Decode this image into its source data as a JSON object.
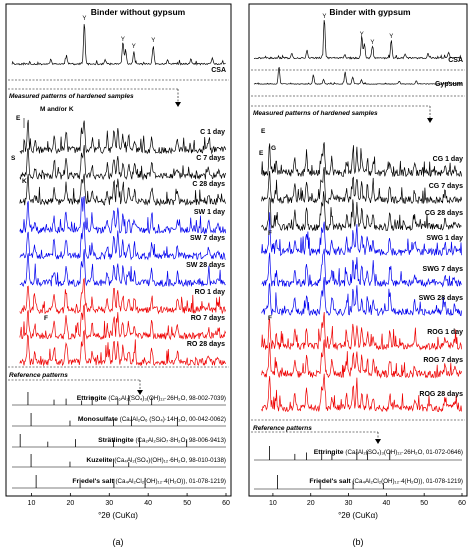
{
  "chart_data": [
    {
      "type": "line",
      "title": "Binder without gypsum",
      "xlabel": "°2θ (CuKα)",
      "xlim": [
        5,
        60
      ],
      "xticks": [
        10,
        20,
        30,
        40,
        50,
        60
      ],
      "panel_label": "(a)",
      "raw_label": "CSA",
      "section_measured": "Measured patterns of hardened samples",
      "section_reference": "Reference patterns",
      "peak_marker_label": "Y",
      "annotations": [
        "M and/or K",
        "E",
        "S",
        "K",
        "F"
      ],
      "measured_series": [
        {
          "name": "C 1 day",
          "color": "#000000"
        },
        {
          "name": "C 7 days",
          "color": "#000000"
        },
        {
          "name": "C 28 days",
          "color": "#000000"
        },
        {
          "name": "SW 1 day",
          "color": "#0000ee"
        },
        {
          "name": "SW 7 days",
          "color": "#0000ee"
        },
        {
          "name": "SW 28 days",
          "color": "#0000ee"
        },
        {
          "name": "RO 1 day",
          "color": "#ee0000"
        },
        {
          "name": "RO 7 days",
          "color": "#ee0000"
        },
        {
          "name": "RO 28 days",
          "color": "#ee0000"
        }
      ],
      "reference_series": [
        {
          "name": "Ettringite",
          "formula": "(Ca₆Al₂(SO₄)₃(OH)₁₂·26H₂O,",
          "code": "98-002-7039)",
          "peaks": [
            9.1,
            15.8,
            18.9,
            22.9,
            25.6,
            32.2,
            35.0,
            40.9
          ]
        },
        {
          "name": "Monosulfate",
          "formula": "(Ca₄Al₂O₆ (SO₄)·14H₂O,",
          "code": "00-042-0062)",
          "peaks": [
            9.9,
            19.9,
            31.1,
            35.7,
            47.5
          ]
        },
        {
          "name": "Strätlingite",
          "formula": "(Ca₂Al₂SiO₇·8H₂O,",
          "code": "98-006-9413)",
          "peaks": [
            7.1,
            14.2,
            21.3,
            31.1,
            37.8,
            49.9
          ]
        },
        {
          "name": "Kuzelite",
          "formula": "(Ca₄Al₂(SO₄)(OH)₁₂·6H₂O,",
          "code": "98-010-0138)",
          "peaks": [
            9.9,
            19.9,
            31.1,
            35.0
          ]
        },
        {
          "name": "Friedel's salt",
          "formula": "(Ca₄Al₂Cl₂(OH)₁₂·4(H₂O)),",
          "code": "01-078-1219)",
          "peaks": [
            11.2,
            22.5,
            31.2,
            39.2
          ]
        }
      ]
    },
    {
      "type": "line",
      "title": "Binder with gypsum",
      "xlabel": "°2θ (CuKα)",
      "xlim": [
        5,
        60
      ],
      "xticks": [
        10,
        20,
        30,
        40,
        50,
        60
      ],
      "panel_label": "(b)",
      "raw_labels": [
        "CSA",
        "Gypsum"
      ],
      "section_measured": "Measured patterns of hardened samples",
      "section_reference": "Reference patterns",
      "peak_marker_label": "Y",
      "annotations": [
        "E",
        "G",
        "E",
        "F",
        "F"
      ],
      "measured_series": [
        {
          "name": "CG 1 day",
          "color": "#000000"
        },
        {
          "name": "CG 7 days",
          "color": "#000000"
        },
        {
          "name": "CG 28 days",
          "color": "#000000"
        },
        {
          "name": "SWG 1 day",
          "color": "#0000ee"
        },
        {
          "name": "SWG 7 days",
          "color": "#0000ee"
        },
        {
          "name": "SWG 28 days",
          "color": "#0000ee"
        },
        {
          "name": "ROG 1 day",
          "color": "#ee0000"
        },
        {
          "name": "ROG 7 days",
          "color": "#ee0000"
        },
        {
          "name": "ROG 28 days",
          "color": "#ee0000"
        }
      ],
      "reference_series": [
        {
          "name": "Ettringite",
          "formula": "(Ca₆Al₂(SO₄)₃(OH)₁₂·26H₂O,",
          "code": "01-072-0646)",
          "peaks": [
            9.1,
            15.8,
            18.9,
            22.9,
            25.6,
            32.2,
            35.0,
            40.9
          ]
        },
        {
          "name": "Friedel's salt",
          "formula": "(Ca₄Al₂Cl₂(OH)₁₂·4(H₂O)),",
          "code": "01-078-1219)",
          "peaks": [
            11.2,
            22.5,
            31.2,
            39.2
          ]
        }
      ]
    }
  ]
}
